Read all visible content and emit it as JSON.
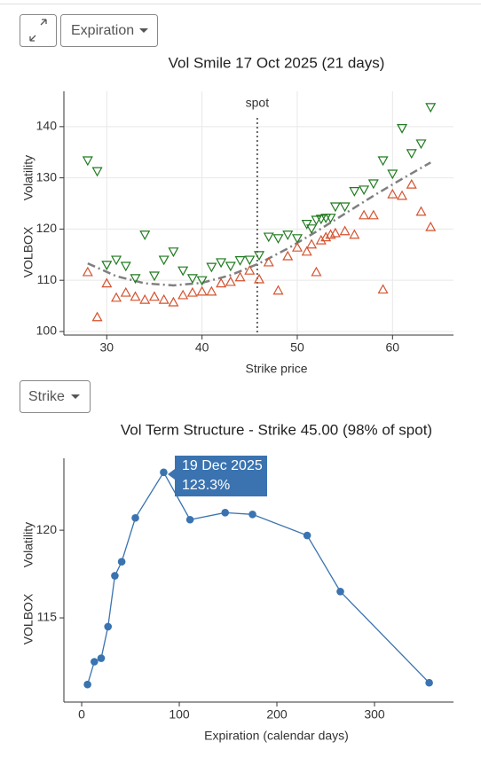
{
  "controls": {
    "top_button": "Expiration",
    "bottom_button": "Strike"
  },
  "chart_data": [
    {
      "type": "scatter",
      "title": "Vol Smile 17 Oct 2025 (21 days)",
      "xlabel": "Strike price",
      "ylabel": [
        "VOLBOX",
        "Volatility"
      ],
      "annotation": {
        "text": "spot",
        "x": 45.8
      },
      "x": [
        28,
        29,
        30,
        31,
        32,
        33,
        34,
        35,
        36,
        37,
        38,
        39,
        40,
        41,
        42,
        43,
        44,
        45,
        46,
        47,
        48,
        49,
        50,
        51,
        51.5,
        52,
        52.5,
        53,
        53.5,
        54,
        55,
        56,
        57,
        58,
        59,
        60,
        61,
        62,
        63,
        64
      ],
      "series": [
        {
          "marker": "triangle-down",
          "color": "#1f7a1f",
          "values": [
            133.4,
            131.3,
            113.0,
            114.0,
            112.8,
            110.4,
            118.9,
            110.9,
            114.0,
            115.6,
            111.9,
            110.4,
            110.0,
            112.6,
            113.5,
            112.8,
            113.9,
            114.0,
            114.9,
            118.5,
            118.2,
            118.9,
            118.2,
            121.0,
            120.1,
            121.8,
            122.0,
            122.2,
            122.2,
            124.4,
            124.4,
            127.4,
            127.7,
            128.9,
            133.4,
            130.8,
            139.7,
            134.8,
            136.7,
            143.8
          ]
        },
        {
          "marker": "triangle-up",
          "color": "#d4532f",
          "values": [
            111.6,
            102.8,
            109.4,
            106.6,
            107.6,
            106.8,
            106.2,
            106.8,
            106.2,
            105.7,
            107.1,
            107.6,
            107.8,
            107.8,
            109.4,
            109.7,
            110.6,
            111.9,
            110.2,
            113.5,
            108.0,
            114.7,
            116.4,
            115.6,
            117.0,
            111.6,
            117.8,
            118.4,
            118.9,
            119.2,
            119.6,
            118.9,
            122.7,
            122.7,
            108.2,
            126.8,
            126.5,
            128.7,
            123.4,
            120.4
          ]
        }
      ],
      "fit": {
        "color": "#7f7f7f",
        "x": [
          28,
          31,
          34,
          37,
          40,
          43,
          46,
          49,
          52,
          55,
          58,
          61,
          64
        ],
        "values": [
          113.3,
          110.8,
          109.4,
          109.0,
          109.5,
          111.0,
          113.3,
          116.2,
          119.5,
          123.0,
          126.5,
          129.8,
          133.0
        ]
      },
      "xlim": [
        25.5,
        66.4
      ],
      "xticks": [
        30,
        40,
        50,
        60
      ],
      "ylim": [
        99.3,
        146.9
      ],
      "yticks": [
        100,
        110,
        120,
        130,
        140
      ],
      "grid": true
    },
    {
      "type": "line",
      "title": "Vol Term Structure - Strike 45.00 (98% of spot)",
      "xlabel": "Expiration (calendar days)",
      "ylabel": [
        "VOLBOX",
        "Volatility"
      ],
      "x": [
        6,
        13,
        20,
        27,
        34,
        41,
        55,
        84,
        111,
        147,
        175,
        231,
        265,
        356
      ],
      "series": [
        {
          "color": "#3a73b0",
          "values": [
            111.2,
            112.5,
            112.7,
            114.5,
            117.4,
            118.2,
            120.7,
            123.3,
            120.6,
            121.0,
            120.9,
            119.7,
            116.5,
            111.3
          ]
        }
      ],
      "tooltip": {
        "title": "19 Dec 2025",
        "text": "123.3%"
      },
      "xlim": [
        -18.2,
        380.9
      ],
      "xticks": [
        0,
        100,
        200,
        300
      ],
      "ylim": [
        110.2,
        124.1
      ],
      "yticks": [
        115,
        120
      ],
      "grid": false
    }
  ]
}
